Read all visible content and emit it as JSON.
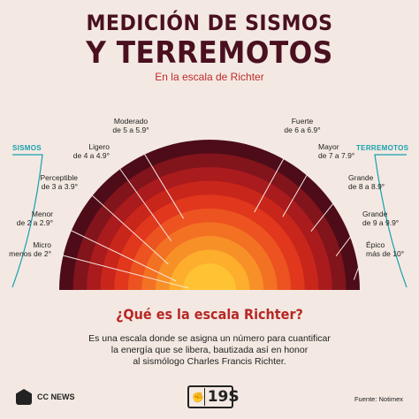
{
  "header": {
    "title_line1": "MEDICIÓN DE SISMOS",
    "title_line2": "Y TERREMOTOS",
    "subtitle": "En la escala de Richter"
  },
  "side_tags": {
    "left": "SISMOS",
    "right": "TERREMOTOS"
  },
  "levels": [
    {
      "name": "Micro",
      "range": "menos de 2°",
      "color": "#ffc233"
    },
    {
      "name": "Menor",
      "range": "de 2 a 2.9°",
      "color": "#fcae2c"
    },
    {
      "name": "Perceptible",
      "range": "de 3 a 3.9°",
      "color": "#f89028"
    },
    {
      "name": "Ligero",
      "range": "de 4 a 4.9°",
      "color": "#f37123"
    },
    {
      "name": "Moderado",
      "range": "de 5 a 5.9°",
      "color": "#ec5320"
    },
    {
      "name": "Fuerte",
      "range": "de 6 a 6.9°",
      "color": "#e0371d"
    },
    {
      "name": "Mayor",
      "range": "de 7 a 7.9°",
      "color": "#c9261b"
    },
    {
      "name": "Grande",
      "range": "de 8 a 8.9°",
      "color": "#a91b1d"
    },
    {
      "name": "Grande",
      "range": "de 9 a 9.9°",
      "color": "#82141c"
    },
    {
      "name": "Épico",
      "range": "más de 10°",
      "color": "#4d0c18"
    }
  ],
  "question": "¿Qué es la escala Richter?",
  "description": [
    "Es una escala donde se asigna un número para cuantificar",
    "la energía que se libera, bautizada así en honor",
    "al sismólogo Charles Francis Richter."
  ],
  "footer": {
    "logo_text": "CC NEWS",
    "badge_text": "19S",
    "source": "Fuente: Notimex"
  }
}
